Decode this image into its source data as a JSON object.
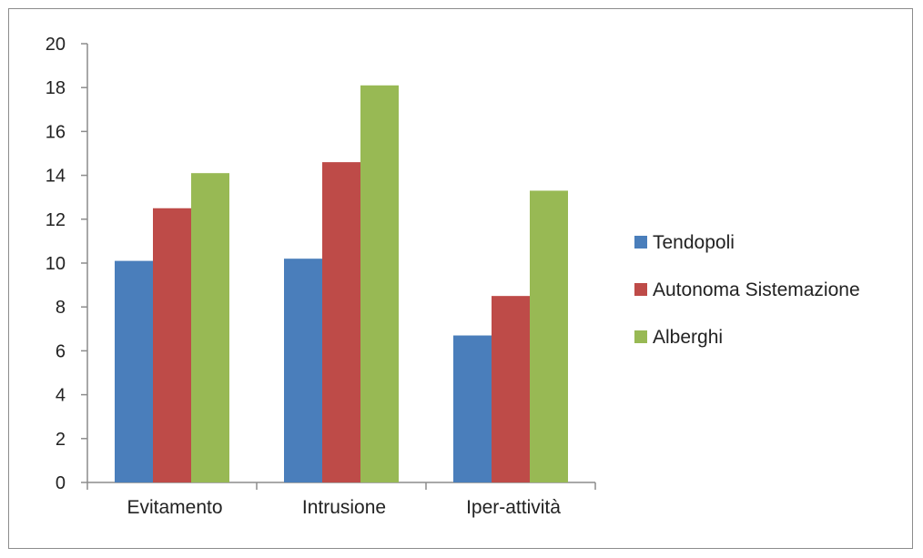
{
  "chart_data": {
    "type": "bar",
    "categories": [
      "Evitamento",
      "Intrusione",
      "Iper-attività"
    ],
    "series": [
      {
        "name": "Tendopoli",
        "values": [
          10.1,
          10.2,
          6.7
        ],
        "color": "#4a7ebb"
      },
      {
        "name": "Autonoma Sistemazione",
        "values": [
          12.5,
          14.6,
          8.5
        ],
        "color": "#be4b48"
      },
      {
        "name": "Alberghi",
        "values": [
          14.1,
          18.1,
          13.3
        ],
        "color": "#98b954"
      }
    ],
    "title": "",
    "xlabel": "",
    "ylabel": "",
    "ylim": [
      0,
      20
    ],
    "yticks": [
      0,
      2,
      4,
      6,
      8,
      10,
      12,
      14,
      16,
      18,
      20
    ],
    "grid": false,
    "legend_position": "right"
  }
}
